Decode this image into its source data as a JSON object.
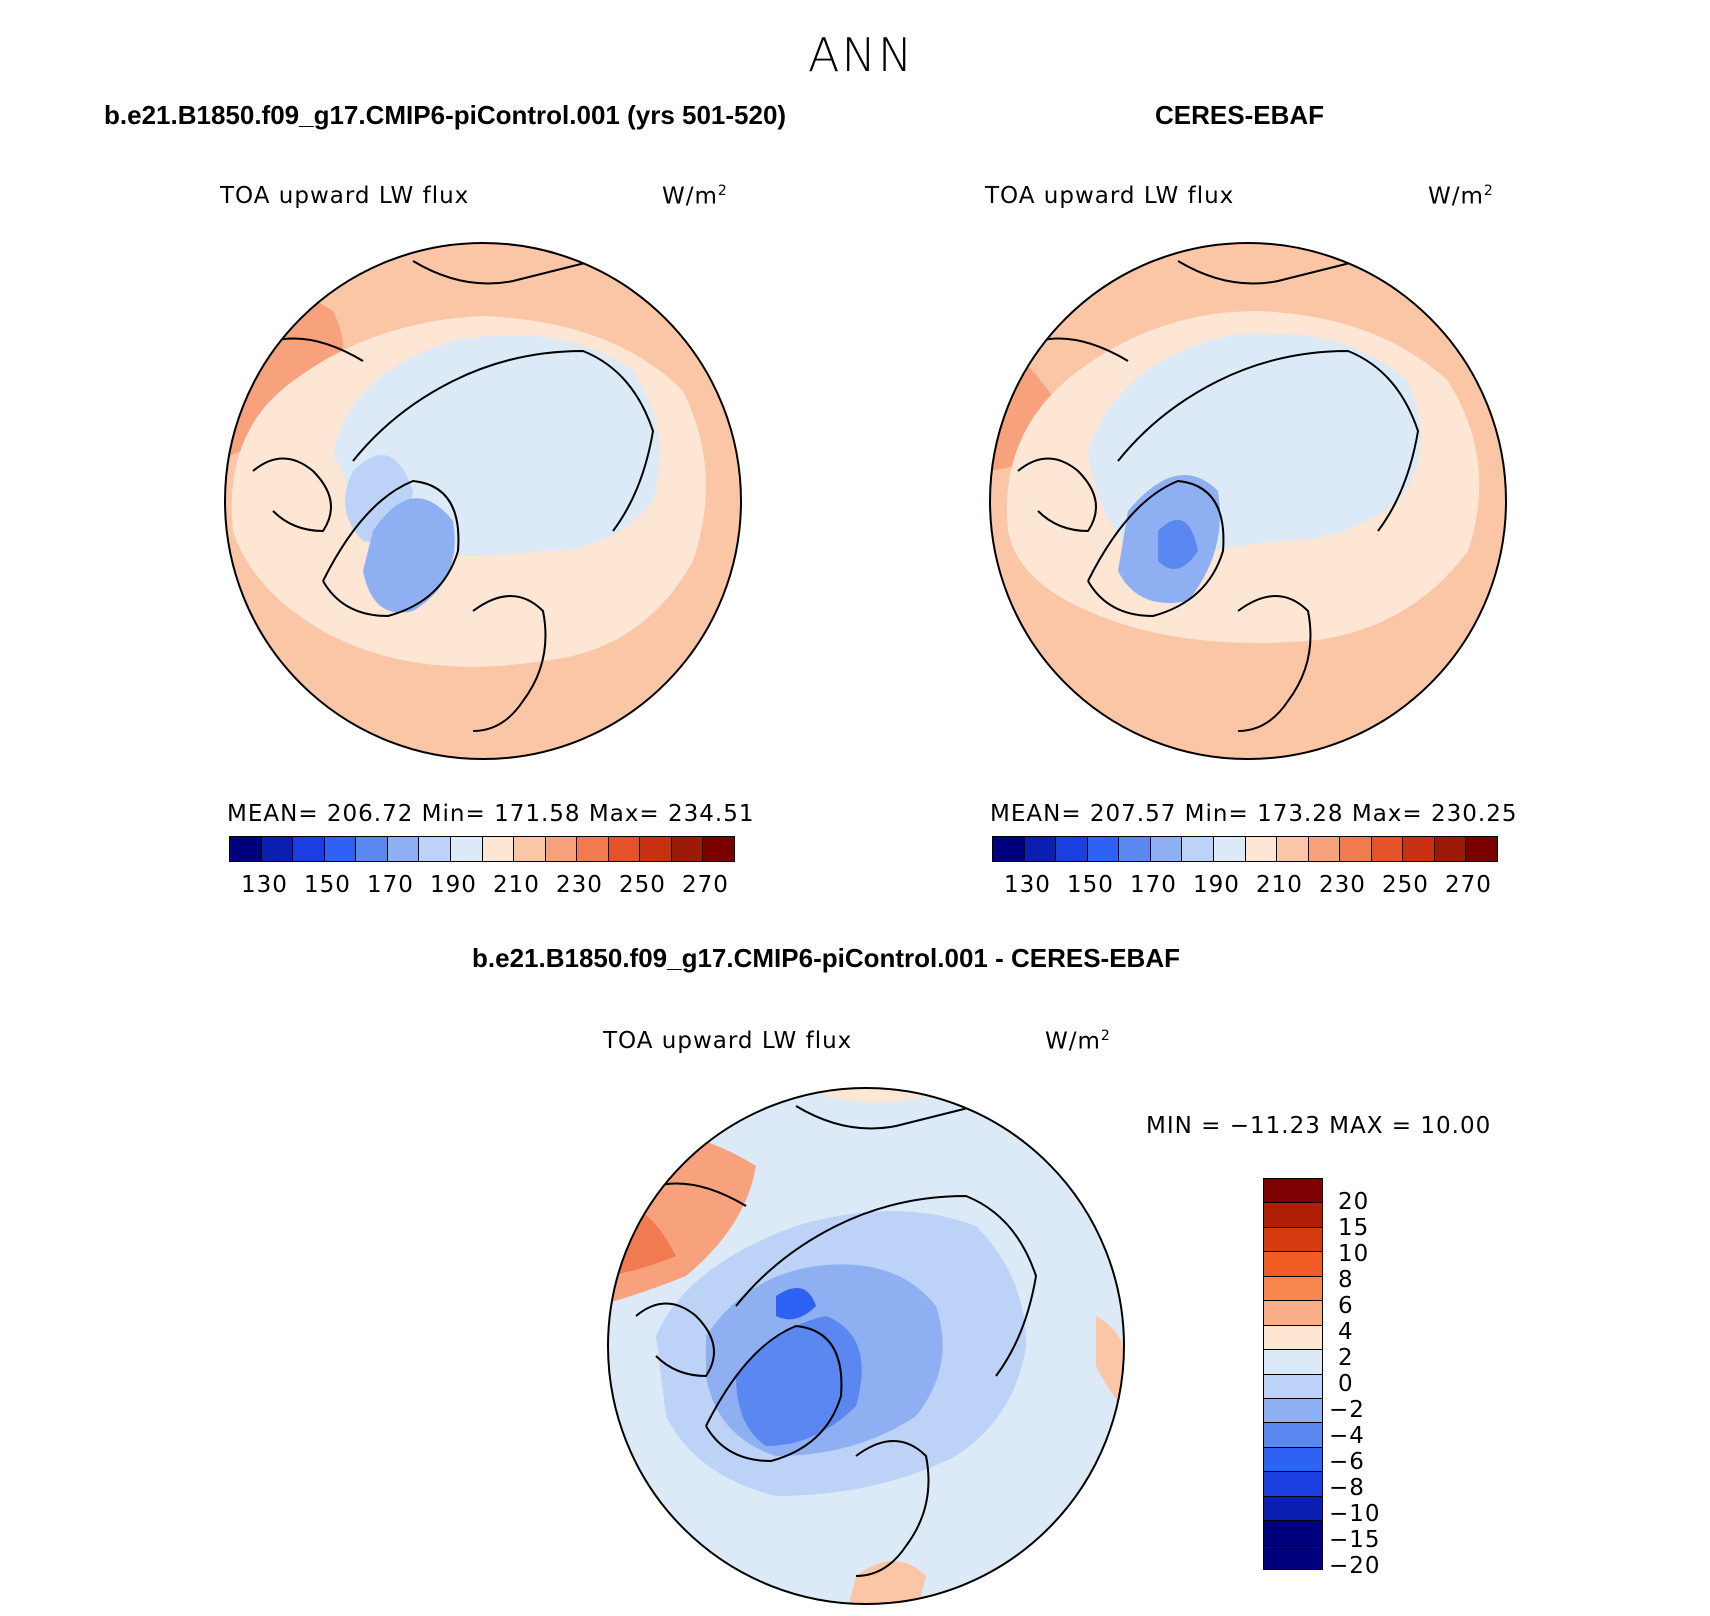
{
  "figure": {
    "title": "ANN"
  },
  "panels": [
    {
      "title": "b.e21.B1850.f09_g17.CMIP6-piControl.001 (yrs 501-520)",
      "variable": "TOA upward LW flux",
      "units": "W/m",
      "units_exp": "2",
      "stats": "MEAN= 206.72   Min= 171.58   Max= 234.51",
      "colorbar_ticks": [
        "130",
        "150",
        "170",
        "190",
        "210",
        "230",
        "250",
        "270"
      ]
    },
    {
      "title": "CERES-EBAF",
      "variable": "TOA upward LW flux",
      "units": "W/m",
      "units_exp": "2",
      "stats": "MEAN= 207.57   Min= 173.28   Max= 230.25",
      "colorbar_ticks": [
        "130",
        "150",
        "170",
        "190",
        "210",
        "230",
        "250",
        "270"
      ]
    },
    {
      "title": "b.e21.B1850.f09_g17.CMIP6-piControl.001 - CERES-EBAF",
      "variable": "TOA upward LW flux",
      "units": "W/m",
      "units_exp": "2",
      "stats": "MIN = −11.23 MAX =   10.00",
      "colorbar_ticks": [
        "20",
        "15",
        "10",
        "8",
        "6",
        "4",
        "2",
        "0",
        "−2",
        "−4",
        "−6",
        "−8",
        "−10",
        "−15",
        "−20"
      ]
    }
  ],
  "colors": {
    "abs_scale": [
      "#00007f",
      "#0a1fb0",
      "#1a3ee0",
      "#2e62f5",
      "#5a87f0",
      "#8eb0f2",
      "#bcd3f7",
      "#dceaf8",
      "#fde6d4",
      "#fbc6a6",
      "#f7a27c",
      "#f07b50",
      "#e4522a",
      "#c73112",
      "#9c1a08",
      "#7a0000"
    ],
    "diff_scale": [
      "#7f0000",
      "#b01e05",
      "#d63a10",
      "#f05c24",
      "#f7864f",
      "#f9ad86",
      "#fde6d4",
      "#dceaf8",
      "#bcd3f7",
      "#8eb0f2",
      "#5a87f0",
      "#2e62f5",
      "#1a3ee0",
      "#0a1fb0",
      "#00007f"
    ]
  }
}
